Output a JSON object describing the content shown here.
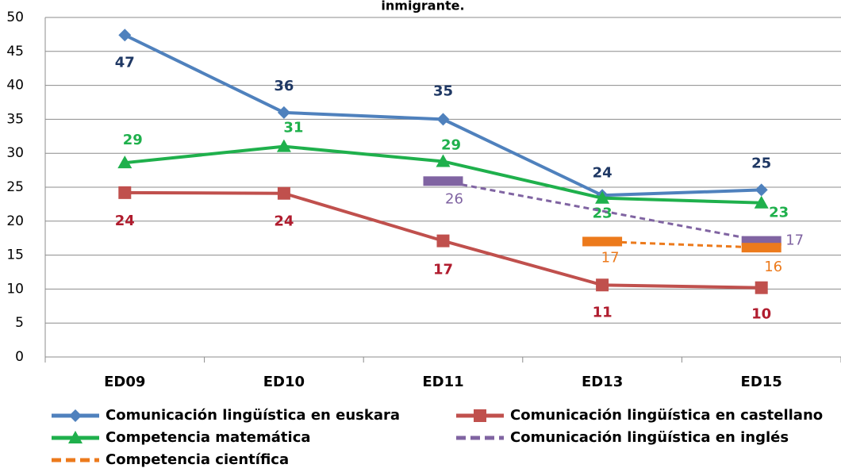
{
  "chart_data": {
    "type": "line",
    "title": "inmigrante.",
    "categories": [
      "ED09",
      "ED10",
      "ED11",
      "ED13",
      "ED15"
    ],
    "ylim": [
      0,
      50
    ],
    "yticks": [
      0,
      5,
      10,
      15,
      20,
      25,
      30,
      35,
      40,
      45,
      50
    ],
    "grid": true,
    "connect_gaps": true,
    "legend": "bottom",
    "series": [
      {
        "name": "Comunicación lingüística en euskara",
        "color": "#4f81bd",
        "label_color": "#1f3864",
        "marker": "diamond",
        "dashed": false,
        "values": [
          47.4,
          36,
          35,
          23.8,
          24.6
        ],
        "value_labels": [
          47,
          36,
          35,
          24,
          25
        ]
      },
      {
        "name": "Comunicación lingüística en castellano",
        "color": "#c0504d",
        "label_color": "#b01c2e",
        "marker": "square",
        "dashed": false,
        "values": [
          24.2,
          24.1,
          17.1,
          10.6,
          10.2
        ],
        "value_labels": [
          24,
          24,
          17,
          11,
          10
        ]
      },
      {
        "name": "Competencia matemática",
        "color": "#1fb04c",
        "label_color": "#1fb04c",
        "marker": "triangle",
        "dashed": false,
        "values": [
          28.6,
          31,
          28.8,
          23.4,
          22.7
        ],
        "value_labels": [
          29,
          31,
          29,
          23,
          23
        ]
      },
      {
        "name": "Comunicación lingüística en inglés",
        "color": "#8064a2",
        "label_color": "#8064a2",
        "marker": "dash",
        "dashed": true,
        "values": [
          null,
          null,
          25.9,
          null,
          17.1
        ],
        "value_labels": [
          null,
          null,
          26,
          null,
          17
        ]
      },
      {
        "name": "Competencia científica",
        "color": "#ec7a1c",
        "label_color": "#ec7a1c",
        "marker": "dash",
        "dashed": true,
        "values": [
          null,
          null,
          null,
          17,
          16.1
        ],
        "value_labels": [
          null,
          null,
          null,
          17,
          16
        ]
      }
    ]
  }
}
